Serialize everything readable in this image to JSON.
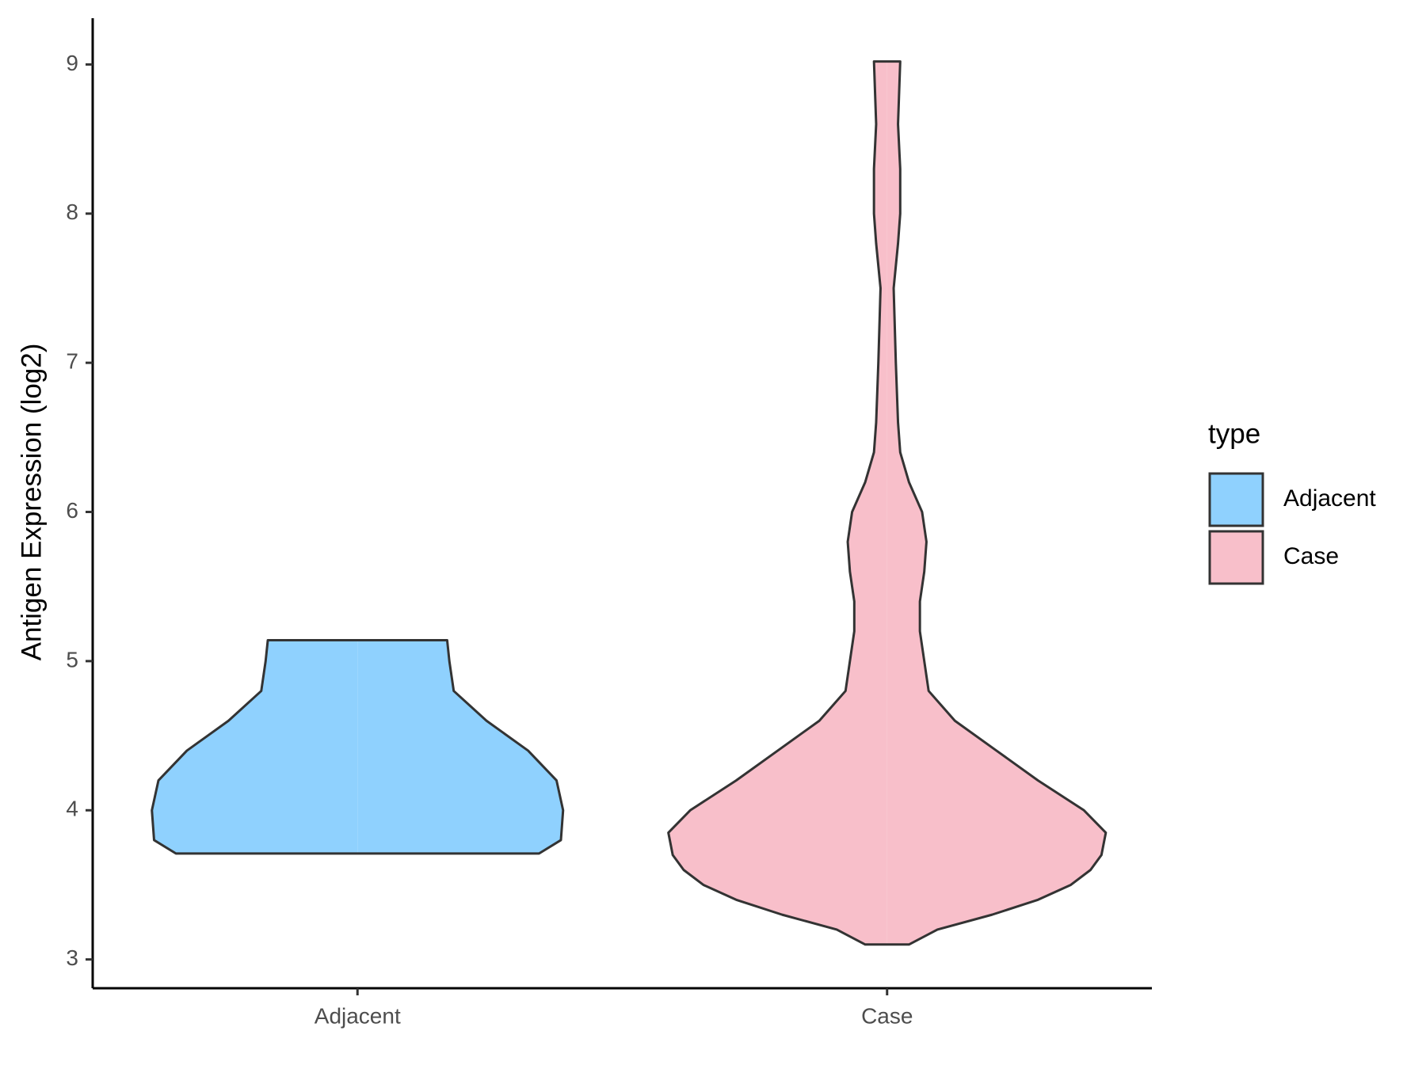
{
  "chart_data": {
    "type": "violin",
    "y_label": "Antigen Expression (log2)",
    "categories": [
      "Adjacent",
      "Case"
    ],
    "legend_title": "type",
    "legend": "right",
    "series": [
      {
        "name": "Adjacent",
        "color": "#8fd1fe",
        "y": [
          3.71,
          3.8,
          4.0,
          4.2,
          4.4,
          4.6,
          4.8,
          5.0,
          5.14
        ],
        "density": [
          0.83,
          0.93,
          0.94,
          0.91,
          0.78,
          0.59,
          0.44,
          0.42,
          0.41
        ]
      },
      {
        "name": "Case",
        "color": "#f8bfca",
        "y": [
          3.1,
          3.2,
          3.3,
          3.4,
          3.5,
          3.6,
          3.7,
          3.85,
          4.0,
          4.2,
          4.4,
          4.6,
          4.8,
          5.0,
          5.2,
          5.4,
          5.6,
          5.8,
          6.0,
          6.2,
          6.4,
          6.6,
          7.0,
          7.5,
          7.8,
          8.0,
          8.3,
          8.6,
          9.02
        ],
        "density": [
          0.1,
          0.23,
          0.48,
          0.69,
          0.84,
          0.93,
          0.98,
          1.0,
          0.9,
          0.69,
          0.5,
          0.31,
          0.19,
          0.17,
          0.15,
          0.15,
          0.17,
          0.18,
          0.16,
          0.1,
          0.06,
          0.05,
          0.04,
          0.03,
          0.05,
          0.06,
          0.06,
          0.05,
          0.06
        ]
      }
    ],
    "ylim": [
      2.807,
      9.31
    ],
    "yticks": [
      3,
      4,
      5,
      6,
      7,
      8,
      9
    ]
  }
}
